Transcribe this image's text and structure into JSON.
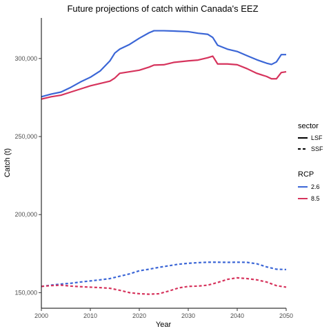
{
  "chart_data": {
    "type": "line",
    "title": "Future projections of catch within Canada's EEZ",
    "xlabel": "Year",
    "ylabel": "Catch (t)",
    "xlim": [
      2000,
      2050
    ],
    "ylim": [
      140000,
      326000
    ],
    "x_ticks": [
      2000,
      2010,
      2020,
      2030,
      2040,
      2050
    ],
    "y_ticks": [
      150000,
      200000,
      250000,
      300000
    ],
    "y_tick_labels": [
      "150,000",
      "200,000",
      "250,000",
      "300,000"
    ],
    "grid": false,
    "legend_position": "right",
    "legends": [
      {
        "title": "sector",
        "entries": [
          {
            "label": "LSF",
            "style": "solid"
          },
          {
            "label": "SSF",
            "style": "dashed"
          }
        ]
      },
      {
        "title": "RCP",
        "entries": [
          {
            "label": "2.6",
            "color": "#3b66d6"
          },
          {
            "label": "8.5",
            "color": "#d6335c"
          }
        ]
      }
    ],
    "series": [
      {
        "name": "LSF 2.6",
        "sector": "LSF",
        "rcp": "2.6",
        "color": "#3b66d6",
        "dash": "solid",
        "x": [
          2000,
          2002,
          2004,
          2006,
          2008,
          2010,
          2012,
          2014,
          2015,
          2016,
          2018,
          2020,
          2022,
          2023,
          2025,
          2027,
          2030,
          2032,
          2034,
          2035,
          2036,
          2038,
          2040,
          2042,
          2044,
          2046,
          2047,
          2048,
          2049,
          2050
        ],
        "y": [
          275500,
          277200,
          278500,
          281500,
          285000,
          288000,
          292000,
          298500,
          303500,
          306000,
          309000,
          313000,
          316500,
          317800,
          317800,
          317600,
          317200,
          316200,
          315500,
          313500,
          308500,
          306000,
          304500,
          301800,
          299200,
          297000,
          296200,
          297800,
          302500,
          302500
        ]
      },
      {
        "name": "LSF 8.5",
        "sector": "LSF",
        "rcp": "8.5",
        "color": "#d6335c",
        "dash": "solid",
        "x": [
          2000,
          2002,
          2004,
          2006,
          2008,
          2010,
          2012,
          2014,
          2015,
          2016,
          2018,
          2020,
          2022,
          2023,
          2025,
          2027,
          2030,
          2032,
          2034,
          2035,
          2036,
          2038,
          2040,
          2042,
          2044,
          2046,
          2047,
          2048,
          2049,
          2050
        ],
        "y": [
          274000,
          275500,
          276500,
          278500,
          280500,
          282500,
          284000,
          285500,
          287500,
          290500,
          291500,
          292500,
          294500,
          295800,
          296000,
          297500,
          298500,
          299000,
          300500,
          301500,
          296500,
          296500,
          296000,
          293500,
          290500,
          288500,
          287000,
          287000,
          291000,
          291500
        ]
      },
      {
        "name": "SSF 2.6",
        "sector": "SSF",
        "rcp": "2.6",
        "color": "#3b66d6",
        "dash": "dashed",
        "x": [
          2000,
          2002,
          2004,
          2006,
          2008,
          2010,
          2012,
          2014,
          2016,
          2018,
          2020,
          2022,
          2024,
          2026,
          2028,
          2030,
          2032,
          2034,
          2036,
          2038,
          2040,
          2042,
          2044,
          2046,
          2048,
          2050
        ],
        "y": [
          154000,
          154800,
          155500,
          156000,
          156800,
          157500,
          158200,
          159000,
          160500,
          162000,
          164000,
          165000,
          166200,
          167200,
          168200,
          168800,
          169200,
          169500,
          169500,
          169400,
          169500,
          169400,
          168500,
          166500,
          165000,
          164800
        ]
      },
      {
        "name": "SSF 8.5",
        "sector": "SSF",
        "rcp": "8.5",
        "color": "#d6335c",
        "dash": "dashed",
        "x": [
          2000,
          2002,
          2004,
          2006,
          2008,
          2010,
          2012,
          2014,
          2016,
          2018,
          2020,
          2022,
          2024,
          2026,
          2028,
          2030,
          2032,
          2034,
          2036,
          2038,
          2040,
          2042,
          2044,
          2046,
          2048,
          2050
        ],
        "y": [
          154000,
          154500,
          154800,
          154200,
          153800,
          153500,
          153200,
          152800,
          151500,
          150000,
          149300,
          149000,
          149300,
          151000,
          153000,
          154000,
          154200,
          154800,
          156500,
          158500,
          159500,
          159000,
          158200,
          156800,
          154500,
          153500
        ]
      }
    ]
  }
}
